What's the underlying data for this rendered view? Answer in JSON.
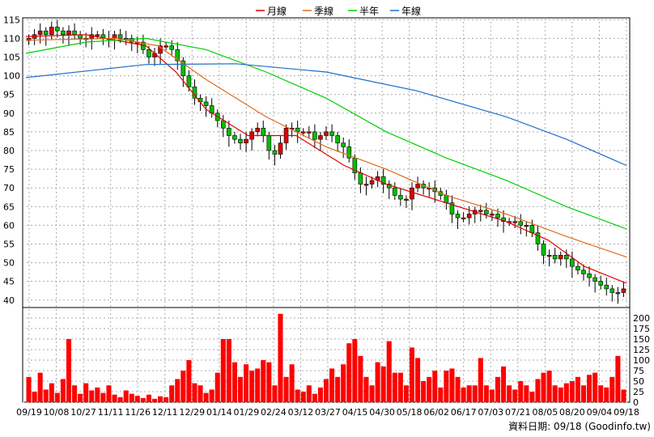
{
  "legend": [
    {
      "name": "月線",
      "color": "#e00000"
    },
    {
      "name": "季線",
      "color": "#e06a1e"
    },
    {
      "name": "半年",
      "color": "#00d000"
    },
    {
      "name": "年線",
      "color": "#1e6ec8"
    }
  ],
  "footer_text": "資料日期: 09/18  (Goodinfo.tw)",
  "chart_data": {
    "type": "candlestick+line+bar",
    "price_panel": {
      "ylim": [
        38,
        115.5
      ],
      "yticks": [
        40,
        45,
        50,
        55,
        60,
        65,
        70,
        75,
        80,
        85,
        90,
        95,
        100,
        105,
        110,
        115
      ],
      "up_color": "#e00000",
      "down_color": "#00c000",
      "candles_close_approx": [
        110,
        111,
        112,
        111,
        113,
        112,
        111,
        112,
        111,
        110,
        110,
        111,
        111,
        110,
        110,
        111,
        110,
        110,
        109,
        109,
        107,
        105,
        106,
        108,
        108,
        107,
        104,
        100,
        97,
        94,
        93,
        92,
        90,
        88,
        86,
        84,
        83,
        82,
        83,
        85,
        86,
        84,
        80,
        79,
        82,
        86,
        86,
        85,
        85,
        85,
        83,
        84,
        85,
        84,
        82,
        81,
        78,
        74,
        71,
        71,
        72,
        73,
        71,
        70,
        68,
        67,
        67,
        70,
        71,
        70,
        70,
        69,
        68,
        66,
        63,
        62,
        62,
        63,
        64,
        64,
        63,
        63,
        62,
        61,
        61,
        61,
        60,
        60,
        58,
        55,
        52,
        52,
        51,
        52,
        51,
        49,
        48,
        47,
        46,
        45,
        44,
        43,
        42,
        42,
        43
      ]
    },
    "moving_averages": [
      {
        "name": "月線",
        "points": [
          [
            0,
            110.5
          ],
          [
            0.1,
            111
          ],
          [
            0.2,
            108
          ],
          [
            0.25,
            101
          ],
          [
            0.3,
            91
          ],
          [
            0.37,
            84
          ],
          [
            0.45,
            84
          ],
          [
            0.53,
            76
          ],
          [
            0.6,
            71
          ],
          [
            0.7,
            66
          ],
          [
            0.8,
            61
          ],
          [
            0.87,
            56
          ],
          [
            0.93,
            49
          ],
          [
            1,
            44.5
          ]
        ]
      },
      {
        "name": "季線",
        "points": [
          [
            0,
            109.5
          ],
          [
            0.15,
            110
          ],
          [
            0.22,
            108
          ],
          [
            0.3,
            99
          ],
          [
            0.4,
            89
          ],
          [
            0.5,
            81
          ],
          [
            0.6,
            75
          ],
          [
            0.7,
            68
          ],
          [
            0.8,
            63
          ],
          [
            0.9,
            57
          ],
          [
            1,
            51.5
          ]
        ]
      },
      {
        "name": "半年",
        "points": [
          [
            0,
            106
          ],
          [
            0.1,
            109
          ],
          [
            0.2,
            110
          ],
          [
            0.3,
            107
          ],
          [
            0.4,
            101
          ],
          [
            0.5,
            94
          ],
          [
            0.6,
            85
          ],
          [
            0.7,
            78
          ],
          [
            0.8,
            72
          ],
          [
            0.9,
            65
          ],
          [
            1,
            59
          ]
        ]
      },
      {
        "name": "年線",
        "points": [
          [
            0,
            99.5
          ],
          [
            0.2,
            103
          ],
          [
            0.35,
            103.2
          ],
          [
            0.5,
            101
          ],
          [
            0.65,
            96
          ],
          [
            0.8,
            89
          ],
          [
            0.9,
            83
          ],
          [
            1,
            76
          ]
        ]
      }
    ],
    "volume_panel": {
      "ylim": [
        0,
        225
      ],
      "yticks": [
        0,
        25,
        50,
        75,
        100,
        125,
        150,
        175,
        200
      ],
      "color": "#ff0000",
      "values": [
        60,
        25,
        70,
        30,
        45,
        22,
        55,
        150,
        40,
        20,
        45,
        28,
        35,
        22,
        40,
        18,
        12,
        28,
        20,
        15,
        10,
        18,
        8,
        14,
        12,
        40,
        55,
        75,
        100,
        45,
        40,
        22,
        30,
        70,
        150,
        150,
        95,
        60,
        90,
        75,
        80,
        100,
        95,
        40,
        210,
        60,
        90,
        30,
        25,
        40,
        20,
        35,
        55,
        80,
        60,
        90,
        140,
        150,
        110,
        60,
        40,
        95,
        85,
        145,
        70,
        70,
        40,
        130,
        105,
        50,
        60,
        75,
        35,
        75,
        80,
        60,
        35,
        40,
        40,
        105,
        40,
        30,
        60,
        85,
        40,
        30,
        50,
        40,
        25,
        55,
        70,
        75,
        40,
        35,
        45,
        50,
        60,
        40,
        65,
        70,
        40,
        35,
        60,
        110,
        30
      ]
    },
    "x_tick_labels": [
      "09/19",
      "10/08",
      "10/27",
      "11/11",
      "11/26",
      "12/11",
      "12/29",
      "01/14",
      "01/29",
      "02/24",
      "03/12",
      "03/27",
      "04/15",
      "04/30",
      "05/18",
      "06/02",
      "06/17",
      "07/03",
      "07/21",
      "08/05",
      "08/20",
      "09/04",
      "09/18"
    ]
  }
}
